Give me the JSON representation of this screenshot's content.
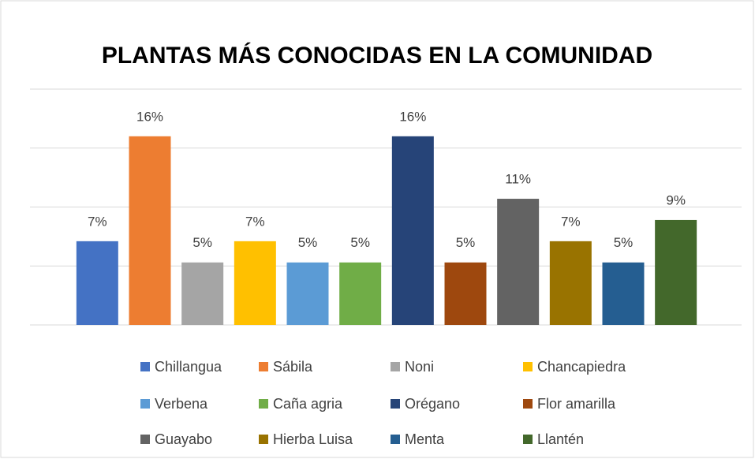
{
  "chart_data": {
    "type": "bar",
    "title": "PLANTAS MÁS CONOCIDAS EN LA COMUNIDAD",
    "categories": [
      "Chillangua",
      "Sábila",
      "Noni",
      "Chancapiedra",
      "Verbena",
      "Caña agria",
      "Orégano",
      "Flor amarilla",
      "Guayabo",
      "Hierba Luisa",
      "Menta",
      "Llantén"
    ],
    "values": [
      7.1,
      16.0,
      5.3,
      7.1,
      5.3,
      5.3,
      16.0,
      5.3,
      10.7,
      7.1,
      5.3,
      8.9
    ],
    "value_labels": [
      "7%",
      "16%",
      "5%",
      "7%",
      "5%",
      "5%",
      "16%",
      "5%",
      "11%",
      "7%",
      "5%",
      "9%"
    ],
    "colors": [
      "#4472c4",
      "#ed7d31",
      "#a5a5a5",
      "#ffc000",
      "#5b9bd5",
      "#70ad47",
      "#264478",
      "#9e480e",
      "#636363",
      "#997300",
      "#255e91",
      "#43682b"
    ],
    "ylim": [
      0,
      20
    ],
    "yticks": [
      0,
      5,
      10,
      15,
      20
    ],
    "grid": true,
    "legend": "bottom"
  }
}
